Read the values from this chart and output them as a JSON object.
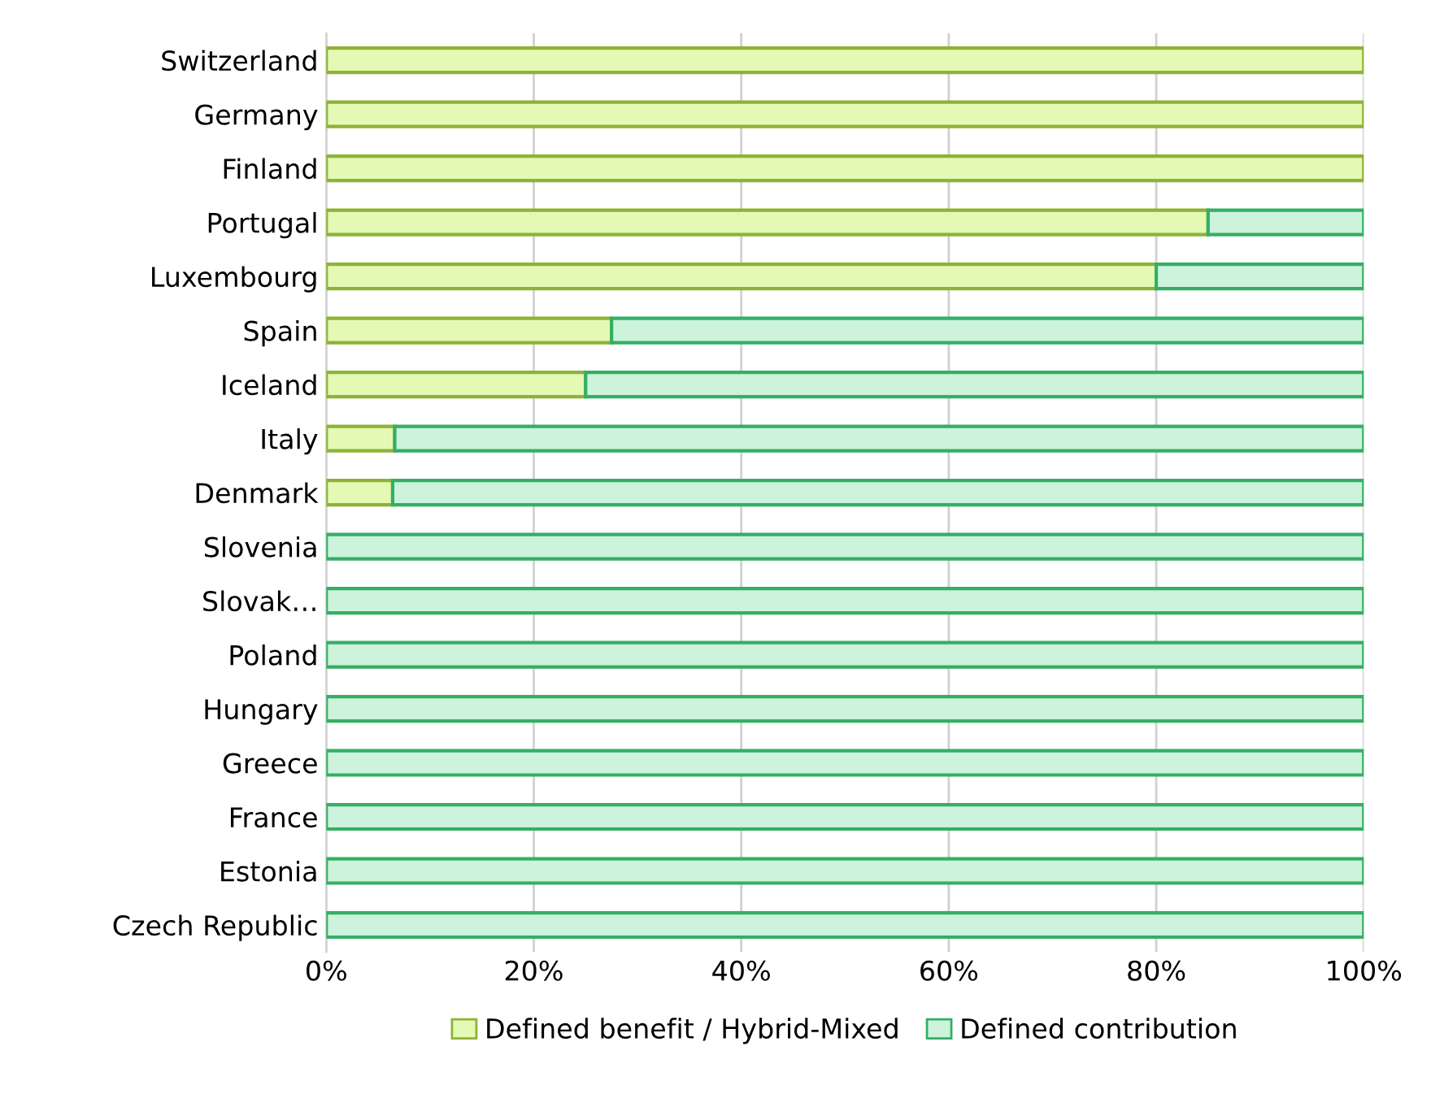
{
  "chart_data": {
    "type": "bar",
    "orientation": "horizontal",
    "stacked": true,
    "categories": [
      "Switzerland",
      "Germany",
      "Finland",
      "Portugal",
      "Luxembourg",
      "Spain",
      "Iceland",
      "Italy",
      "Denmark",
      "Slovenia",
      "Slovak…",
      "Poland",
      "Hungary",
      "Greece",
      "France",
      "Estonia",
      "Czech Republic"
    ],
    "series": [
      {
        "name": "Defined benefit / Hybrid-Mixed",
        "color": "#e4f9b4",
        "values": [
          100,
          100,
          100,
          85,
          80,
          27.5,
          25,
          6.6,
          6.4,
          0,
          0,
          0,
          0,
          0,
          0,
          0,
          0
        ]
      },
      {
        "name": "Defined contribution",
        "color": "#cdf3dc",
        "values": [
          0,
          0,
          0,
          15,
          20,
          72.5,
          75,
          93.4,
          93.6,
          100,
          100,
          100,
          100,
          100,
          100,
          100,
          100
        ]
      }
    ],
    "xlim": [
      0,
      100
    ],
    "xticks": [
      {
        "value": 0,
        "label": "0%"
      },
      {
        "value": 20,
        "label": "20%"
      },
      {
        "value": 40,
        "label": "40%"
      },
      {
        "value": 60,
        "label": "60%"
      },
      {
        "value": 80,
        "label": "80%"
      },
      {
        "value": 100,
        "label": "100%"
      }
    ],
    "grid": "x",
    "legend": "bottom"
  }
}
